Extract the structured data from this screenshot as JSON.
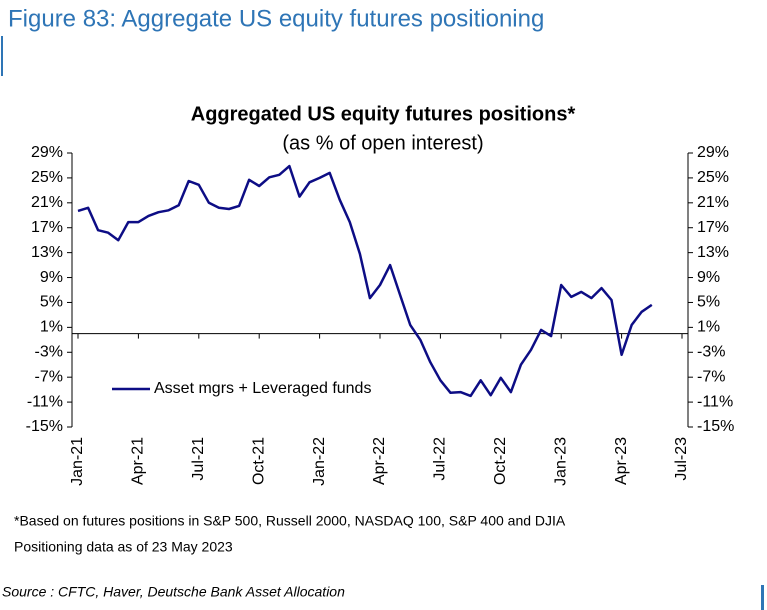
{
  "header": {
    "title": "Figure 83: Aggregate US equity futures positioning"
  },
  "chart_data": {
    "type": "line",
    "title": "Aggregated US equity futures positions*",
    "subtitle": "(as % of open interest)",
    "categories": [
      "Jan-21",
      null,
      null,
      null,
      null,
      null,
      "Apr-21",
      null,
      null,
      null,
      null,
      null,
      "Jul-21",
      null,
      null,
      null,
      null,
      null,
      "Oct-21",
      null,
      null,
      null,
      null,
      null,
      "Jan-22",
      null,
      null,
      null,
      null,
      null,
      "Apr-22",
      null,
      null,
      null,
      null,
      null,
      "Jul-22",
      null,
      null,
      null,
      null,
      null,
      "Oct-22",
      null,
      null,
      null,
      null,
      null,
      "Jan-23",
      null,
      null,
      null,
      null,
      null,
      "Apr-23",
      null,
      null,
      null,
      null,
      null,
      "Jul-23"
    ],
    "series": [
      {
        "name": "Asset mgrs + Leveraged funds",
        "color": "#0d0d85",
        "values": [
          19.7,
          20.2,
          16.6,
          16.2,
          15.0,
          17.9,
          17.9,
          18.9,
          19.5,
          19.8,
          20.6,
          24.5,
          23.9,
          21.0,
          20.2,
          20.0,
          20.5,
          24.7,
          23.7,
          25.1,
          25.5,
          26.9,
          22.0,
          24.3,
          25.0,
          25.8,
          21.5,
          17.9,
          12.8,
          5.7,
          7.8,
          11.0,
          6.2,
          1.4,
          -1.0,
          -4.6,
          -7.5,
          -9.5,
          -9.4,
          -10.0,
          -7.5,
          -9.9,
          -7.1,
          -9.4,
          -5.0,
          -2.6,
          0.6,
          -0.4,
          7.8,
          5.9,
          6.7,
          5.7,
          7.3,
          5.4,
          -3.4,
          1.4,
          3.5,
          4.6,
          null,
          null,
          null
        ]
      }
    ],
    "ylim": [
      -15,
      29
    ],
    "yticks": [
      {
        "value": -15,
        "label": "-15%"
      },
      {
        "value": -11,
        "label": "-11%"
      },
      {
        "value": -7,
        "label": "-7%"
      },
      {
        "value": -3,
        "label": "-3%"
      },
      {
        "value": 1,
        "label": "1%"
      },
      {
        "value": 5,
        "label": "5%"
      },
      {
        "value": 9,
        "label": "9%"
      },
      {
        "value": 13,
        "label": "13%"
      },
      {
        "value": 17,
        "label": "17%"
      },
      {
        "value": 21,
        "label": "21%"
      },
      {
        "value": 25,
        "label": "25%"
      },
      {
        "value": 29,
        "label": "29%"
      }
    ],
    "y2lim": [
      -15,
      29
    ],
    "y2ticks": [
      {
        "value": -15,
        "label": "-15%"
      },
      {
        "value": -11,
        "label": "-11%"
      },
      {
        "value": -7,
        "label": "-7%"
      },
      {
        "value": -3,
        "label": "-3%"
      },
      {
        "value": 1,
        "label": "1%"
      },
      {
        "value": 5,
        "label": "5%"
      },
      {
        "value": 9,
        "label": "9%"
      },
      {
        "value": 13,
        "label": "13%"
      },
      {
        "value": 17,
        "label": "17%"
      },
      {
        "value": 21,
        "label": "21%"
      },
      {
        "value": 25,
        "label": "25%"
      },
      {
        "value": 29,
        "label": "29%"
      }
    ],
    "grid": false
  },
  "footnotes": [
    "*Based on futures positions in S&P 500, Russell 2000, NASDAQ 100, S&P 400 and DJIA",
    "Positioning data as of 23 May 2023"
  ],
  "source": "Source : CFTC, Haver, Deutsche Bank Asset Allocation"
}
